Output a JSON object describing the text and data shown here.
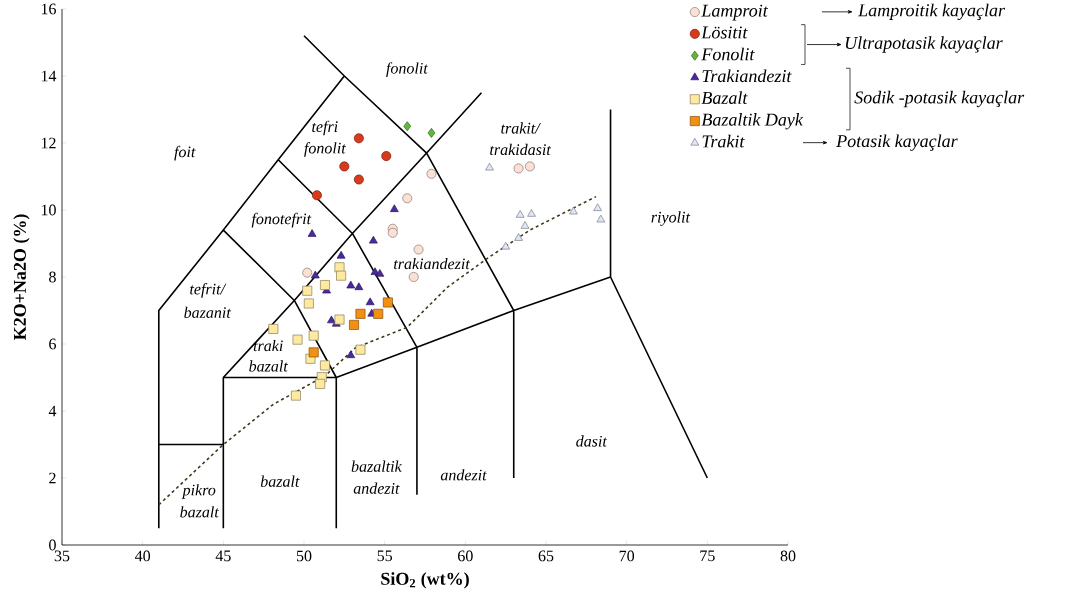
{
  "chart_data": {
    "type": "scatter",
    "xlabel": "SiO$_{2}$ (wt%)",
    "ylabel": "K2O+Na2O (%)",
    "xlim": [
      35,
      80
    ],
    "ylim": [
      0,
      16
    ],
    "xticks": [
      35,
      40,
      45,
      50,
      55,
      60,
      65,
      70,
      75,
      80
    ],
    "yticks": [
      0,
      2,
      4,
      6,
      8,
      10,
      12,
      14,
      16
    ],
    "legend": "top right",
    "series": [
      {
        "type": "line",
        "color": "#000000",
        "marker": "none",
        "line_style": "solid",
        "x": [
          41,
          41,
          45,
          48.4,
          52.5,
          57.6,
          61,
          null,
          50,
          52.5,
          null,
          45,
          45,
          49.4,
          53,
          57.6,
          63,
          69,
          75,
          null,
          69,
          69,
          null,
          41,
          45,
          null,
          45,
          49.4,
          52,
          null,
          48.4,
          53,
          57,
          null,
          45,
          52,
          57,
          63,
          null,
          52,
          52,
          null,
          57,
          57,
          null,
          63,
          63
        ],
        "values": [
          0.5,
          7,
          9.4,
          11.5,
          14,
          11.7,
          13.5,
          null,
          15.2,
          14,
          null,
          0.5,
          5,
          7.3,
          9.3,
          11.7,
          7,
          8,
          2,
          null,
          8,
          13,
          null,
          3,
          3,
          null,
          9.4,
          7.3,
          5,
          null,
          11.5,
          9.3,
          5.9,
          null,
          5,
          5,
          5.9,
          7,
          null,
          0.5,
          5,
          null,
          1.5,
          5.9,
          null,
          2,
          7
        ]
      },
      {
        "type": "line",
        "color": "#3d3a1a",
        "marker": "none",
        "line_style": "dashed",
        "x": [
          41,
          45,
          48.1,
          51.3,
          53.2,
          56.4,
          58.9,
          61.5,
          64,
          68.1
        ],
        "values": [
          1.2,
          3,
          4.2,
          5.05,
          5.89,
          6.5,
          7.7,
          8.6,
          9.4,
          10.4
        ]
      },
      {
        "name": "Lamproit",
        "color": "#fbe0d4",
        "marker": "circle",
        "x": [
          50.2,
          56.4,
          55.5,
          55.5,
          57.9,
          57.1,
          56.8,
          63.3,
          64.0
        ],
        "values": [
          8.13,
          10.35,
          9.44,
          9.32,
          11.08,
          8.82,
          8.0,
          11.24,
          11.3
        ]
      },
      {
        "name": "Lösitit",
        "color": "#d93a1c",
        "marker": "circle",
        "x": [
          53.4,
          55.1,
          52.5,
          53.4,
          50.8
        ],
        "values": [
          12.14,
          11.61,
          11.3,
          10.91,
          10.44
        ]
      },
      {
        "name": "Fonolit",
        "color": "#5fb83a",
        "marker": "diamond",
        "x": [
          56.4,
          57.9
        ],
        "values": [
          12.5,
          12.3
        ]
      },
      {
        "name": "Trakiandezit",
        "color": "#4b2aa0",
        "marker": "triangle",
        "x": [
          55.6,
          50.5,
          54.3,
          52.3,
          54.4,
          54.7,
          50.7,
          52.9,
          53.4,
          51.4,
          54.1,
          54.2,
          51.7,
          52.0,
          52.9
        ],
        "values": [
          10.02,
          9.28,
          9.08,
          8.63,
          8.14,
          8.09,
          8.04,
          7.74,
          7.69,
          7.59,
          7.24,
          6.9,
          6.7,
          6.6,
          5.66
        ]
      },
      {
        "name": "Bazalt",
        "color": "#fde9a0",
        "marker": "square",
        "x": [
          52.2,
          52.3,
          51.3,
          50.2,
          50.3,
          52.2,
          48.1,
          49.6,
          50.6,
          50.4,
          51.3,
          51.1,
          51.0,
          49.5,
          53.5
        ],
        "values": [
          8.29,
          8.04,
          7.76,
          7.59,
          7.21,
          6.73,
          6.45,
          6.13,
          6.25,
          5.56,
          5.36,
          5.01,
          4.81,
          4.46,
          5.83
        ]
      },
      {
        "name": "Bazaltik Dayk",
        "color": "#f39014",
        "marker": "square",
        "x": [
          55.2,
          54.6,
          53.5,
          53.1,
          50.6
        ],
        "values": [
          7.24,
          6.9,
          6.9,
          6.57,
          5.75
        ]
      },
      {
        "name": "Trakit",
        "color": "#dfe6f8",
        "marker": "triangle",
        "x": [
          61.5,
          63.4,
          64.1,
          63.7,
          63.3,
          62.5,
          66.7,
          68.2,
          68.4
        ],
        "values": [
          11.26,
          9.85,
          9.88,
          9.52,
          9.16,
          8.9,
          9.95,
          10.05,
          9.71
        ]
      }
    ],
    "annotations": [
      "fonolit",
      "tefri",
      "fonolit",
      "foit",
      "fonotefrit",
      "trakit/",
      "trakidasit",
      "trakiandezit",
      "riyolit",
      "tefrit/",
      "bazanit",
      "traki",
      "bazalt",
      "dasit",
      "andezit",
      "bazaltik",
      "andezit",
      "bazalt",
      "pikro",
      "bazalt",
      "Lamproitik kayaçlar",
      "Ultrapotasik kayaçlar",
      "Sodik -potasik kayaçlar",
      "Potasik kayaçlar"
    ]
  }
}
